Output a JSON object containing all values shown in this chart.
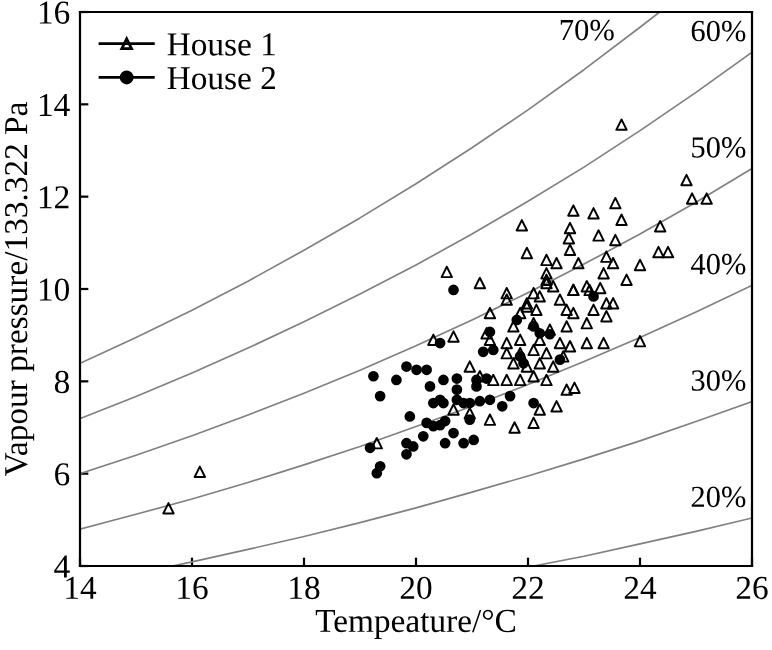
{
  "chart_data": {
    "type": "scatter",
    "xlabel": "Tempeature/°C",
    "ylabel": "Vapour pressure/133.322 Pa",
    "xlim": [
      14,
      26
    ],
    "ylim": [
      4,
      16
    ],
    "xticks": [
      14,
      16,
      18,
      20,
      22,
      24,
      26
    ],
    "yticks": [
      4,
      6,
      8,
      10,
      12,
      14,
      16
    ],
    "grid": false,
    "legend": "top left",
    "series": [
      {
        "name": "House 1",
        "marker": "triangle",
        "color": "#000000",
        "x": [
          23.67,
          24.83,
          24.93,
          25.19,
          21.89,
          22.81,
          23.17,
          23.56,
          23.67,
          22.75,
          22.73,
          23.26,
          23.56,
          24.36,
          24.33,
          24.5,
          21.98,
          22.33,
          22.51,
          22.75,
          22.9,
          23.4,
          23.52,
          24.0,
          23.35,
          22.33,
          20.55,
          21.14,
          21.62,
          22.1,
          22.33,
          22.81,
          23.05,
          23.76,
          23.4,
          21.32,
          21.98,
          22.69,
          22.33,
          22.45,
          22.81,
          23.1,
          23.29,
          22.21,
          22.57,
          23.52,
          21.62,
          21.98,
          21.86,
          22.15,
          22.81,
          23.17,
          23.4,
          21.74,
          22.1,
          22.39,
          22.69,
          23.05,
          20.31,
          20.67,
          21.26,
          21.32,
          21.62,
          21.86,
          22.21,
          22.57,
          22.75,
          23.05,
          23.35,
          24.0,
          21.62,
          21.86,
          22.1,
          22.33,
          22.63,
          21.74,
          21.98,
          22.21,
          22.45,
          20.96,
          21.14,
          21.38,
          21.62,
          21.86,
          22.1,
          22.33,
          22.69,
          22.83,
          20.67,
          20.96,
          22.21,
          22.51,
          21.32,
          21.76,
          22.1,
          19.3,
          16.14,
          15.58
        ],
        "values": [
          13.56,
          12.36,
          11.96,
          11.96,
          11.38,
          11.7,
          11.64,
          11.86,
          11.5,
          11.32,
          11.1,
          11.16,
          11.06,
          11.36,
          10.8,
          10.8,
          10.78,
          10.63,
          10.56,
          10.85,
          10.56,
          10.7,
          10.56,
          10.52,
          10.34,
          10.34,
          10.37,
          10.13,
          9.91,
          9.91,
          10.13,
          9.98,
          10.06,
          10.2,
          9.69,
          9.48,
          9.62,
          9.55,
          10.2,
          10.06,
          9.98,
          9.98,
          10.02,
          9.84,
          9.77,
          9.69,
          9.77,
          9.69,
          9.48,
          9.55,
          9.48,
          9.55,
          9.41,
          9.19,
          9.26,
          9.12,
          9.19,
          9.26,
          8.9,
          8.97,
          9.04,
          8.9,
          8.83,
          8.9,
          8.9,
          8.83,
          8.76,
          8.83,
          8.83,
          8.87,
          8.61,
          8.61,
          8.68,
          8.61,
          8.54,
          8.39,
          8.32,
          8.39,
          8.32,
          8.32,
          8.11,
          8.03,
          8.03,
          8.03,
          8.11,
          8.03,
          7.82,
          7.86,
          7.39,
          7.31,
          7.39,
          7.46,
          7.17,
          7.0,
          7.1,
          6.66,
          6.04,
          5.25
        ]
      },
      {
        "name": "House 2",
        "marker": "circle",
        "color": "#000000",
        "x": [
          20.67,
          23.17,
          21.8,
          22.1,
          22.21,
          21.32,
          22.39,
          20.43,
          21.38,
          21.2,
          22.57,
          21.86,
          21.92,
          19.83,
          20.01,
          20.19,
          19.24,
          19.65,
          20.49,
          20.73,
          21.08,
          21.26,
          20.25,
          20.73,
          21.08,
          19.36,
          20.43,
          20.73,
          20.85,
          21.14,
          21.32,
          21.68,
          20.31,
          20.49,
          20.96,
          21.54,
          22.1,
          19.89,
          20.96,
          20.19,
          20.43,
          20.31,
          20.52,
          20.67,
          20.13,
          20.52,
          20.85,
          21.03,
          19.83,
          19.95,
          19.83,
          19.18,
          19.36,
          19.3
        ],
        "values": [
          9.98,
          9.84,
          9.33,
          9.19,
          9.04,
          9.07,
          9.02,
          8.83,
          8.68,
          8.64,
          8.47,
          8.54,
          8.39,
          8.32,
          8.25,
          8.25,
          8.11,
          8.03,
          8.03,
          8.06,
          8.03,
          8.06,
          7.89,
          7.82,
          7.89,
          7.68,
          7.6,
          7.6,
          7.53,
          7.57,
          7.6,
          7.68,
          7.53,
          7.53,
          7.53,
          7.46,
          7.53,
          7.24,
          7.17,
          7.1,
          7.05,
          7.03,
          7.14,
          6.88,
          6.81,
          6.66,
          6.66,
          6.73,
          6.66,
          6.59,
          6.42,
          6.56,
          6.16,
          6.01
        ]
      },
      {
        "name": "70%",
        "type": "line",
        "color": "#808080",
        "x": [
          14,
          15,
          16,
          17,
          18,
          19,
          20,
          21,
          22,
          23,
          24,
          24.35
        ],
        "values": [
          8.39,
          8.95,
          9.54,
          10.17,
          10.84,
          11.54,
          12.28,
          13.06,
          13.88,
          14.75,
          15.67,
          16.0
        ]
      },
      {
        "name": "60%",
        "type": "line",
        "color": "#808080",
        "x": [
          14,
          15,
          16,
          17,
          18,
          19,
          20,
          21,
          22,
          23,
          24,
          25,
          26
        ],
        "values": [
          7.19,
          7.67,
          8.18,
          8.72,
          9.29,
          9.89,
          10.52,
          11.19,
          11.9,
          12.64,
          13.43,
          14.26,
          15.13
        ]
      },
      {
        "name": "50%",
        "type": "line",
        "color": "#808080",
        "x": [
          14,
          15,
          16,
          17,
          18,
          19,
          20,
          21,
          22,
          23,
          24,
          25,
          26
        ],
        "values": [
          6.0,
          6.4,
          6.82,
          7.27,
          7.74,
          8.24,
          8.77,
          9.33,
          9.92,
          10.54,
          11.19,
          11.88,
          12.61
        ]
      },
      {
        "name": "40%",
        "type": "line",
        "color": "#808080",
        "x": [
          14,
          15,
          16,
          17,
          18,
          19,
          20,
          21,
          22,
          23,
          24,
          25,
          26
        ],
        "values": [
          4.8,
          5.12,
          5.45,
          5.81,
          6.19,
          6.59,
          7.02,
          7.46,
          7.93,
          8.43,
          8.95,
          9.5,
          10.08
        ]
      },
      {
        "name": "30%",
        "type": "line",
        "color": "#808080",
        "x": [
          15.65,
          16,
          17,
          18,
          19,
          20,
          21,
          22,
          23,
          24,
          25,
          26
        ],
        "values": [
          4.0,
          4.09,
          4.36,
          4.64,
          4.94,
          5.26,
          5.6,
          5.95,
          6.32,
          6.71,
          7.13,
          7.56
        ]
      },
      {
        "name": "20%",
        "type": "line",
        "color": "#808080",
        "x": [
          22.1,
          23,
          24,
          25,
          26
        ],
        "values": [
          4.0,
          4.21,
          4.48,
          4.75,
          5.04
        ]
      }
    ]
  }
}
